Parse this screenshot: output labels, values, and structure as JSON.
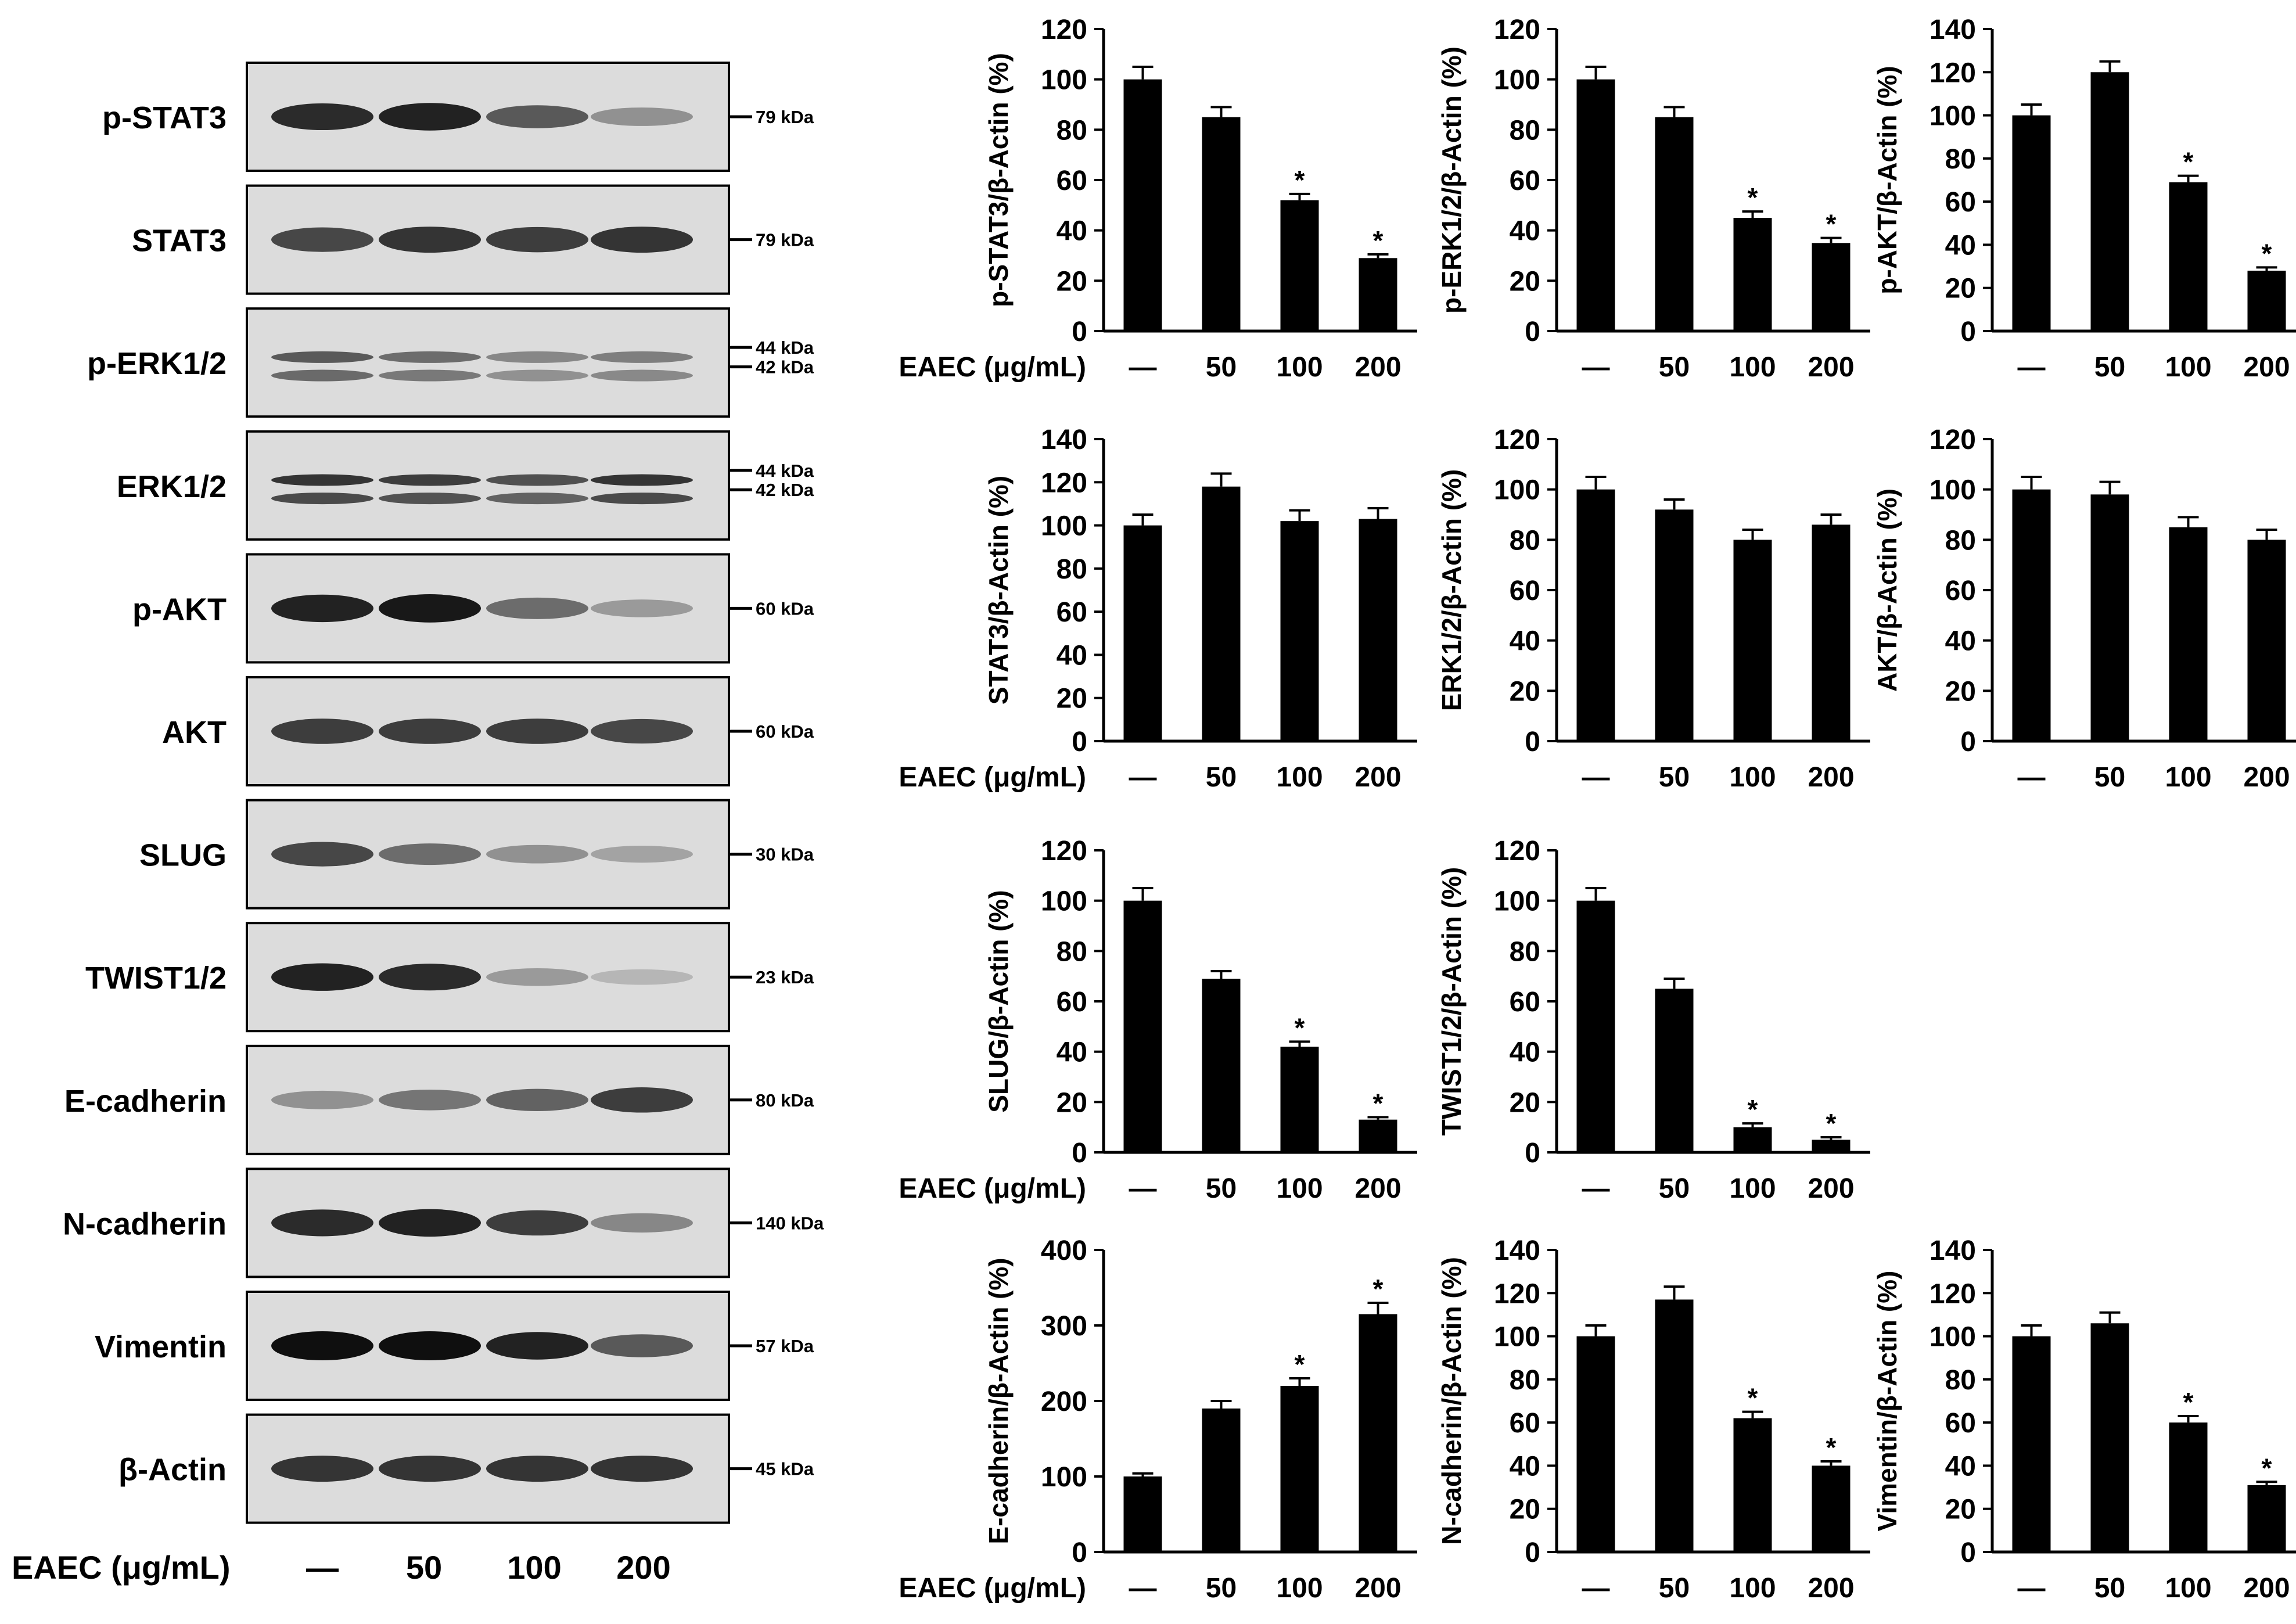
{
  "treatment_label": "EAEC (μg/mL)",
  "conditions": [
    "—",
    "50",
    "100",
    "200"
  ],
  "blot_panels": [
    {
      "protein": "p-STAT3",
      "markers": [
        "79 kDa"
      ],
      "intensity": [
        0.85,
        0.9,
        0.6,
        0.3
      ]
    },
    {
      "protein": "STAT3",
      "markers": [
        "79 kDa"
      ],
      "intensity": [
        0.7,
        0.8,
        0.75,
        0.8
      ]
    },
    {
      "protein": "p-ERK1/2",
      "markers": [
        "44 kDa",
        "42 kDa"
      ],
      "intensity": [
        0.6,
        0.5,
        0.35,
        0.4
      ]
    },
    {
      "protein": "ERK1/2",
      "markers": [
        "44 kDa",
        "42 kDa"
      ],
      "intensity": [
        0.8,
        0.75,
        0.65,
        0.8
      ]
    },
    {
      "protein": "p-AKT",
      "markers": [
        "60 kDa"
      ],
      "intensity": [
        0.9,
        0.95,
        0.5,
        0.25
      ]
    },
    {
      "protein": "AKT",
      "markers": [
        "60 kDa"
      ],
      "intensity": [
        0.75,
        0.75,
        0.75,
        0.7
      ]
    },
    {
      "protein": "SLUG",
      "markers": [
        "30 kDa"
      ],
      "intensity": [
        0.7,
        0.5,
        0.3,
        0.2
      ]
    },
    {
      "protein": "TWIST1/2",
      "markers": [
        "23 kDa"
      ],
      "intensity": [
        0.9,
        0.85,
        0.25,
        0.1
      ]
    },
    {
      "protein": "E-cadherin",
      "markers": [
        "80 kDa"
      ],
      "intensity": [
        0.3,
        0.45,
        0.55,
        0.75
      ]
    },
    {
      "protein": "N-cadherin",
      "markers": [
        "140 kDa"
      ],
      "intensity": [
        0.85,
        0.9,
        0.75,
        0.35
      ]
    },
    {
      "protein": "Vimentin",
      "markers": [
        "57 kDa"
      ],
      "intensity": [
        1.0,
        1.0,
        0.9,
        0.6
      ]
    },
    {
      "protein": "β-Actin",
      "markers": [
        "45 kDa"
      ],
      "intensity": [
        0.8,
        0.8,
        0.8,
        0.8
      ]
    }
  ],
  "chart_data": [
    {
      "type": "bar",
      "ylabel": "p-STAT3/β-Actin (%)",
      "categories": [
        "—",
        "50",
        "100",
        "200"
      ],
      "values": [
        100,
        85,
        52,
        29
      ],
      "errors": [
        5,
        4,
        2.5,
        1.5
      ],
      "significant": [
        false,
        false,
        true,
        true
      ],
      "ylim": [
        0,
        120
      ],
      "yticks": [
        0,
        20,
        40,
        60,
        80,
        100,
        120
      ],
      "show_treatment_label": true
    },
    {
      "type": "bar",
      "ylabel": "p-ERK1/2/β-Actin (%)",
      "categories": [
        "—",
        "50",
        "100",
        "200"
      ],
      "values": [
        100,
        85,
        45,
        35
      ],
      "errors": [
        5,
        4,
        2.5,
        2
      ],
      "significant": [
        false,
        false,
        true,
        true
      ],
      "ylim": [
        0,
        120
      ],
      "yticks": [
        0,
        20,
        40,
        60,
        80,
        100,
        120
      ],
      "show_treatment_label": false
    },
    {
      "type": "bar",
      "ylabel": "p-AKT/β-Actin (%)",
      "categories": [
        "—",
        "50",
        "100",
        "200"
      ],
      "values": [
        100,
        120,
        69,
        28
      ],
      "errors": [
        5,
        5,
        3,
        1.5
      ],
      "significant": [
        false,
        false,
        true,
        true
      ],
      "ylim": [
        0,
        140
      ],
      "yticks": [
        0,
        20,
        40,
        60,
        80,
        100,
        120,
        140
      ],
      "show_treatment_label": false
    },
    {
      "type": "bar",
      "ylabel": "STAT3/β-Actin (%)",
      "categories": [
        "—",
        "50",
        "100",
        "200"
      ],
      "values": [
        100,
        118,
        102,
        103
      ],
      "errors": [
        5,
        6,
        5,
        5
      ],
      "significant": [
        false,
        false,
        false,
        false
      ],
      "ylim": [
        0,
        140
      ],
      "yticks": [
        0,
        20,
        40,
        60,
        80,
        100,
        120,
        140
      ],
      "show_treatment_label": true
    },
    {
      "type": "bar",
      "ylabel": "ERK1/2/β-Actin (%)",
      "categories": [
        "—",
        "50",
        "100",
        "200"
      ],
      "values": [
        100,
        92,
        80,
        86
      ],
      "errors": [
        5,
        4,
        4,
        4
      ],
      "significant": [
        false,
        false,
        false,
        false
      ],
      "ylim": [
        0,
        120
      ],
      "yticks": [
        0,
        20,
        40,
        60,
        80,
        100,
        120
      ],
      "show_treatment_label": false
    },
    {
      "type": "bar",
      "ylabel": "AKT/β-Actin (%)",
      "categories": [
        "—",
        "50",
        "100",
        "200"
      ],
      "values": [
        100,
        98,
        85,
        80
      ],
      "errors": [
        5,
        5,
        4,
        4
      ],
      "significant": [
        false,
        false,
        false,
        false
      ],
      "ylim": [
        0,
        120
      ],
      "yticks": [
        0,
        20,
        40,
        60,
        80,
        100,
        120
      ],
      "show_treatment_label": false
    },
    {
      "type": "bar",
      "ylabel": "SLUG/β-Actin (%)",
      "categories": [
        "—",
        "50",
        "100",
        "200"
      ],
      "values": [
        100,
        69,
        42,
        13
      ],
      "errors": [
        5,
        3,
        2,
        1
      ],
      "significant": [
        false,
        false,
        true,
        true
      ],
      "ylim": [
        0,
        120
      ],
      "yticks": [
        0,
        20,
        40,
        60,
        80,
        100,
        120
      ],
      "show_treatment_label": true
    },
    {
      "type": "bar",
      "ylabel": "TWIST1/2/β-Actin (%)",
      "categories": [
        "—",
        "50",
        "100",
        "200"
      ],
      "values": [
        100,
        65,
        10,
        5
      ],
      "errors": [
        5,
        4,
        1.5,
        1
      ],
      "significant": [
        false,
        false,
        true,
        true
      ],
      "ylim": [
        0,
        120
      ],
      "yticks": [
        0,
        20,
        40,
        60,
        80,
        100,
        120
      ],
      "show_treatment_label": false
    },
    {
      "type": "bar",
      "ylabel": "E-cadherin/β-Actin (%)",
      "categories": [
        "—",
        "50",
        "100",
        "200"
      ],
      "values": [
        100,
        190,
        220,
        315
      ],
      "errors": [
        4,
        10,
        10,
        15
      ],
      "significant": [
        false,
        false,
        true,
        true
      ],
      "ylim": [
        0,
        400
      ],
      "yticks": [
        0,
        100,
        200,
        300,
        400
      ],
      "show_treatment_label": true
    },
    {
      "type": "bar",
      "ylabel": "N-cadherin/β-Actin (%)",
      "categories": [
        "—",
        "50",
        "100",
        "200"
      ],
      "values": [
        100,
        117,
        62,
        40
      ],
      "errors": [
        5,
        6,
        3,
        2
      ],
      "significant": [
        false,
        false,
        true,
        true
      ],
      "ylim": [
        0,
        140
      ],
      "yticks": [
        0,
        20,
        40,
        60,
        80,
        100,
        120,
        140
      ],
      "show_treatment_label": false
    },
    {
      "type": "bar",
      "ylabel": "Vimentin/β-Actin (%)",
      "categories": [
        "—",
        "50",
        "100",
        "200"
      ],
      "values": [
        100,
        106,
        60,
        31
      ],
      "errors": [
        5,
        5,
        3,
        1.5
      ],
      "significant": [
        false,
        false,
        true,
        true
      ],
      "ylim": [
        0,
        140
      ],
      "yticks": [
        0,
        20,
        40,
        60,
        80,
        100,
        120,
        140
      ],
      "show_treatment_label": false
    }
  ],
  "significance_mark": "*"
}
